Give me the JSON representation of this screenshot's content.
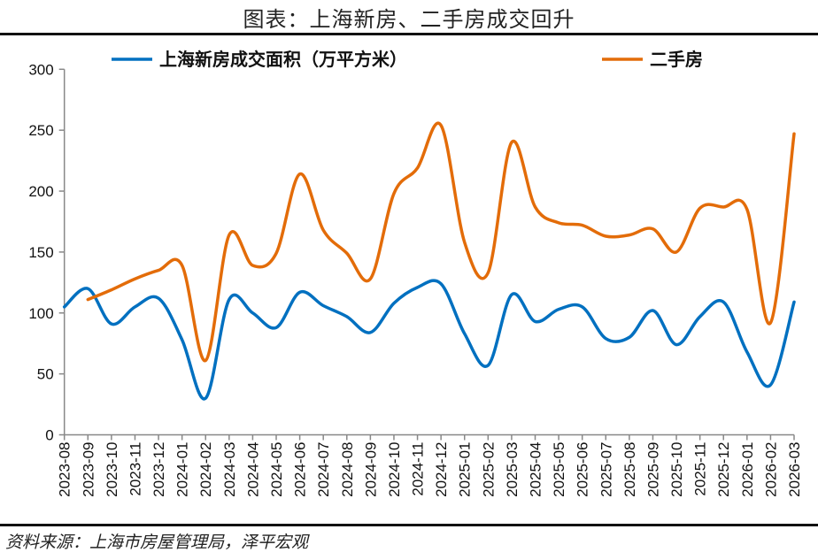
{
  "title": "图表：上海新房、二手房成交回升",
  "source": "资料来源：上海市房屋管理局，泽平宏观",
  "chart_data": {
    "type": "line",
    "title": "",
    "xlabel": "",
    "ylabel": "",
    "ylim": [
      0,
      300
    ],
    "yticks": [
      0,
      50,
      100,
      150,
      200,
      250,
      300
    ],
    "grid": false,
    "legend": "top",
    "smooth": true,
    "categories": [
      "2023-08",
      "2023-09",
      "2023-10",
      "2023-11",
      "2023-12",
      "2024-01",
      "2024-02",
      "2024-03",
      "2024-04",
      "2024-05",
      "2024-06",
      "2024-07",
      "2024-08",
      "2024-09",
      "2024-10",
      "2024-11",
      "2024-12",
      "2025-01",
      "2025-02",
      "2025-03",
      "2025-04",
      "2025-05",
      "2025-06",
      "2025-07",
      "2025-08",
      "2025-09",
      "2025-10",
      "2025-11",
      "2025-12",
      "2026-01",
      "2026-02",
      "2026-03"
    ],
    "series": [
      {
        "name": "上海新房成交面积（万平方米）",
        "color": "#0070C0",
        "values": [
          105,
          120,
          91,
          105,
          112,
          78,
          30,
          111,
          100,
          88,
          117,
          106,
          97,
          84,
          108,
          121,
          124,
          83,
          57,
          115,
          93,
          103,
          105,
          79,
          80,
          102,
          74,
          97,
          109,
          68,
          41,
          109
        ]
      },
      {
        "name": "二手房",
        "color": "#E36C09",
        "values": [
          null,
          111,
          119,
          128,
          135,
          139,
          61,
          164,
          139,
          149,
          214,
          168,
          149,
          128,
          198,
          219,
          254,
          158,
          133,
          240,
          187,
          174,
          172,
          163,
          164,
          169,
          150,
          186,
          187,
          185,
          92,
          247
        ]
      }
    ]
  }
}
